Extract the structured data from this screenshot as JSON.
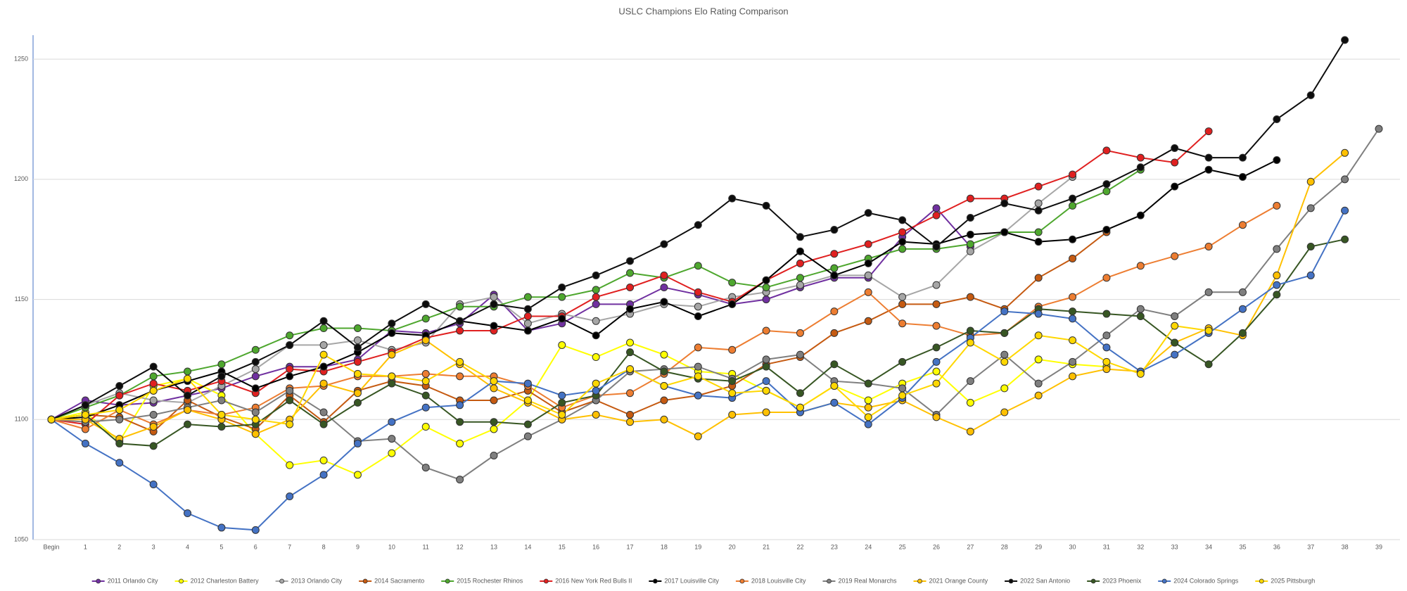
{
  "chart_data": {
    "type": "line",
    "title": "USLC Champions Elo Rating Comparison",
    "categories": [
      "Begin",
      "1",
      "2",
      "3",
      "4",
      "5",
      "6",
      "7",
      "8",
      "9",
      "10",
      "11",
      "12",
      "13",
      "14",
      "15",
      "16",
      "17",
      "18",
      "19",
      "20",
      "21",
      "22",
      "23",
      "24",
      "25",
      "26",
      "27",
      "28",
      "29",
      "30",
      "31",
      "32",
      "33",
      "34",
      "35",
      "36",
      "37",
      "38",
      "39"
    ],
    "ylim": [
      1050,
      1260
    ],
    "yticks": [
      1050,
      1100,
      1150,
      1200,
      1250
    ],
    "grid": true,
    "series": [
      {
        "name": "2011 Orlando City",
        "color": "#7030a0",
        "values": [
          1100,
          1108,
          1106,
          1107,
          1110,
          1113,
          1118,
          1122,
          1122,
          1125,
          1137,
          1136,
          1140,
          1152,
          1137,
          1140,
          1148,
          1148,
          1155,
          1152,
          1148,
          1150,
          1155,
          1159,
          1159,
          1176,
          1188,
          1172,
          null,
          null,
          null,
          null,
          null,
          null,
          null,
          null,
          null,
          null,
          null,
          null
        ]
      },
      {
        "name": "2012 Charleston Battery",
        "color": "#ffff00",
        "values": [
          1100,
          1103,
          1091,
          1114,
          1117,
          1110,
          1094,
          1081,
          1083,
          1077,
          1086,
          1097,
          1090,
          1096,
          1108,
          1131,
          1126,
          1132,
          1127,
          1120,
          1119,
          1112,
          1105,
          1114,
          1108,
          1115,
          1120,
          1107,
          1113,
          1125,
          1123,
          1122,
          null,
          null,
          null,
          null,
          null,
          null,
          null,
          null
        ]
      },
      {
        "name": "2013 Orlando City",
        "color": "#a6a6a6",
        "values": [
          1100,
          1106,
          1111,
          1108,
          1107,
          1114,
          1121,
          1131,
          1131,
          1133,
          1129,
          1132,
          1148,
          1151,
          1140,
          1144,
          1141,
          1144,
          1148,
          1147,
          1151,
          1153,
          1156,
          1160,
          1160,
          1151,
          1156,
          1170,
          1178,
          1190,
          1201,
          null,
          null,
          null,
          null,
          null,
          null,
          null,
          null,
          null
        ]
      },
      {
        "name": "2014 Sacramento",
        "color": "#c55a11",
        "values": [
          1100,
          1102,
          1101,
          1095,
          1108,
          1101,
          1096,
          1110,
          1099,
          1112,
          1116,
          1114,
          1108,
          1108,
          1112,
          1103,
          1108,
          1102,
          1108,
          1110,
          1114,
          1123,
          1126,
          1136,
          1141,
          1148,
          1148,
          1151,
          1146,
          1159,
          1167,
          1178,
          null,
          null,
          null,
          null,
          null,
          null,
          null,
          null
        ]
      },
      {
        "name": "2015 Rochester Rhinos",
        "color": "#4ea72e",
        "values": [
          1100,
          1105,
          1110,
          1118,
          1120,
          1123,
          1129,
          1135,
          1138,
          1138,
          1137,
          1142,
          1147,
          1147,
          1151,
          1151,
          1154,
          1161,
          1159,
          1164,
          1157,
          1155,
          1159,
          1163,
          1167,
          1171,
          1171,
          1173,
          1178,
          1178,
          1189,
          1195,
          1204,
          null,
          null,
          null,
          null,
          null,
          null,
          null
        ]
      },
      {
        "name": "2016 New York Red Bulls II",
        "color": "#e02020",
        "values": [
          1100,
          1098,
          1110,
          1115,
          1112,
          1116,
          1111,
          1121,
          1120,
          1124,
          1128,
          1134,
          1137,
          1137,
          1143,
          1143,
          1151,
          1155,
          1160,
          1153,
          1149,
          1158,
          1165,
          1169,
          1173,
          1178,
          1185,
          1192,
          1192,
          1197,
          1202,
          1212,
          1209,
          1207,
          1220,
          null,
          null,
          null,
          null,
          null
        ]
      },
      {
        "name": "2017 Louisville City",
        "color": "#000000",
        "values": [
          1100,
          1101,
          1106,
          1112,
          1116,
          1120,
          1113,
          1118,
          1122,
          1128,
          1136,
          1135,
          1141,
          1139,
          1137,
          1142,
          1135,
          1146,
          1149,
          1143,
          1148,
          1158,
          1170,
          1160,
          1165,
          1174,
          1173,
          1177,
          1178,
          1174,
          1175,
          1179,
          1185,
          1197,
          1204,
          1201,
          1208,
          null,
          null,
          null
        ]
      },
      {
        "name": "2018 Louisville City",
        "color": "#ed7d31",
        "values": [
          1100,
          1096,
          1104,
          1098,
          1104,
          1102,
          1105,
          1113,
          1114,
          1118,
          1118,
          1119,
          1118,
          1118,
          1114,
          1105,
          1110,
          1111,
          1119,
          1130,
          1129,
          1137,
          1136,
          1145,
          1153,
          1140,
          1139,
          1135,
          1136,
          1147,
          1151,
          1159,
          1164,
          1168,
          1172,
          1181,
          1189,
          null,
          null,
          null
        ]
      },
      {
        "name": "2019 Real Monarchs",
        "color": "#7f7f7f",
        "values": [
          1100,
          1099,
          1100,
          1102,
          1105,
          1108,
          1103,
          1112,
          1103,
          1091,
          1092,
          1080,
          1075,
          1085,
          1093,
          1100,
          1108,
          1120,
          1121,
          1122,
          1117,
          1125,
          1127,
          1116,
          1115,
          1113,
          1102,
          1116,
          1127,
          1115,
          1124,
          1135,
          1146,
          1143,
          1153,
          1153,
          1171,
          1188,
          1200,
          1221
        ]
      },
      {
        "name": "2021 Orange County",
        "color": "#ffc000",
        "values": [
          1100,
          1100,
          1092,
          1097,
          1104,
          1100,
          1094,
          1100,
          1115,
          1111,
          1127,
          1133,
          1123,
          1113,
          1107,
          1100,
          1102,
          1099,
          1100,
          1093,
          1102,
          1103,
          1103,
          1107,
          1105,
          1108,
          1101,
          1095,
          1103,
          1110,
          1118,
          1121,
          1120,
          1132,
          1138,
          1135,
          1160,
          1199,
          1211,
          null
        ]
      },
      {
        "name": "2022 San Antonio",
        "color": "#0d0d0d",
        "values": [
          1100,
          1106,
          1114,
          1122,
          1110,
          1118,
          1124,
          1131,
          1141,
          1130,
          1140,
          1148,
          1141,
          1148,
          1146,
          1155,
          1160,
          1166,
          1173,
          1181,
          1192,
          1189,
          1176,
          1179,
          1186,
          1183,
          1172,
          1184,
          1190,
          1187,
          1192,
          1198,
          1205,
          1213,
          1209,
          1209,
          1225,
          1235,
          1258,
          null
        ]
      },
      {
        "name": "2023 Phoenix",
        "color": "#375623",
        "values": [
          1100,
          1102,
          1090,
          1089,
          1098,
          1097,
          1098,
          1108,
          1098,
          1107,
          1115,
          1110,
          1099,
          1099,
          1098,
          1107,
          1110,
          1128,
          1120,
          1117,
          1116,
          1122,
          1111,
          1123,
          1115,
          1124,
          1130,
          1137,
          1136,
          1146,
          1145,
          1144,
          1143,
          1132,
          1123,
          1136,
          1152,
          1172,
          1175,
          null
        ]
      },
      {
        "name": "2024 Colorado Springs",
        "color": "#4472c4",
        "values": [
          1100,
          1090,
          1082,
          1073,
          1061,
          1055,
          1054,
          1068,
          1077,
          1090,
          1099,
          1105,
          1106,
          1116,
          1115,
          1110,
          1112,
          1121,
          1114,
          1110,
          1109,
          1116,
          1103,
          1107,
          1098,
          1109,
          1124,
          1134,
          1145,
          1144,
          1142,
          1130,
          1120,
          1127,
          1136,
          1146,
          1156,
          1160,
          1187,
          null
        ]
      },
      {
        "name": "2025 Pittsburgh",
        "color": "#ffd700",
        "values": [
          1100,
          1102,
          1104,
          1112,
          1117,
          1102,
          1100,
          1098,
          1127,
          1119,
          1118,
          1116,
          1124,
          1116,
          1108,
          1102,
          1115,
          1121,
          1114,
          1118,
          1111,
          1112,
          1105,
          1114,
          1101,
          1110,
          1115,
          1132,
          1124,
          1135,
          1133,
          1124,
          1119,
          1139,
          1137,
          null,
          null,
          null,
          null,
          null
        ]
      }
    ]
  }
}
